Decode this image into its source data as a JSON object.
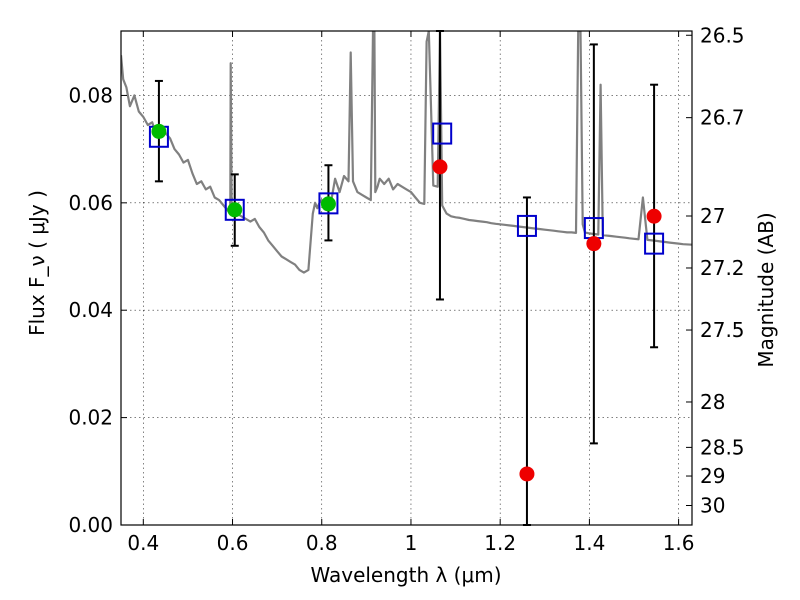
{
  "chart_data": {
    "type": "scatter",
    "xlabel": "Wavelength λ (μm)",
    "ylabel": "Flux F_ν ( μJy )",
    "ylabel_right": "Magnitude (AB)",
    "xlim": [
      0.35,
      1.63
    ],
    "ylim": [
      0.0,
      0.092
    ],
    "grid": true,
    "x_ticks": [
      0.4,
      0.6,
      0.8,
      1.0,
      1.2,
      1.4,
      1.6
    ],
    "x_tick_labels": [
      "0.4",
      "0.6",
      "0.8",
      "1",
      "1.2",
      "1.4",
      "1.6"
    ],
    "y_ticks": [
      0.0,
      0.02,
      0.04,
      0.06,
      0.08
    ],
    "y_tick_labels": [
      "0.00",
      "0.02",
      "0.04",
      "0.06",
      "0.08"
    ],
    "right_ticks": [
      {
        "label": "26.5",
        "value": 26.5
      },
      {
        "label": "26.7",
        "value": 26.7
      },
      {
        "label": "27",
        "value": 27.0
      },
      {
        "label": "27.2",
        "value": 27.2
      },
      {
        "label": "27.5",
        "value": 27.5
      },
      {
        "label": "28",
        "value": 28.0
      },
      {
        "label": "28.5",
        "value": 28.5
      },
      {
        "label": "29",
        "value": 29.0
      },
      {
        "label": "30",
        "value": 30.0
      }
    ],
    "series": [
      {
        "kind": "model_spectrum",
        "color": "#808080",
        "x": [
          0.35,
          0.355,
          0.362,
          0.37,
          0.38,
          0.39,
          0.4,
          0.41,
          0.42,
          0.43,
          0.44,
          0.45,
          0.46,
          0.47,
          0.48,
          0.49,
          0.5,
          0.51,
          0.52,
          0.53,
          0.54,
          0.55,
          0.56,
          0.57,
          0.58,
          0.59,
          0.595,
          0.596,
          0.598,
          0.6,
          0.61,
          0.62,
          0.63,
          0.64,
          0.65,
          0.66,
          0.67,
          0.68,
          0.69,
          0.7,
          0.71,
          0.72,
          0.73,
          0.74,
          0.75,
          0.76,
          0.77,
          0.78,
          0.785,
          0.79,
          0.795,
          0.8,
          0.81,
          0.82,
          0.83,
          0.84,
          0.85,
          0.86,
          0.865,
          0.87,
          0.875,
          0.88,
          0.89,
          0.9,
          0.91,
          0.915,
          0.918,
          0.92,
          0.925,
          0.93,
          0.94,
          0.95,
          0.96,
          0.97,
          0.98,
          0.99,
          1.0,
          1.01,
          1.02,
          1.03,
          1.035,
          1.04,
          1.05,
          1.06,
          1.065,
          1.07,
          1.08,
          1.09,
          1.1,
          1.11,
          1.12,
          1.13,
          1.14,
          1.15,
          1.16,
          1.17,
          1.18,
          1.19,
          1.2,
          1.21,
          1.22,
          1.23,
          1.24,
          1.25,
          1.26,
          1.27,
          1.28,
          1.29,
          1.3,
          1.31,
          1.32,
          1.33,
          1.34,
          1.35,
          1.36,
          1.37,
          1.375,
          1.38,
          1.385,
          1.39,
          1.4,
          1.41,
          1.42,
          1.425,
          1.43,
          1.44,
          1.45,
          1.46,
          1.47,
          1.48,
          1.49,
          1.5,
          1.51,
          1.52,
          1.53,
          1.54,
          1.55,
          1.56,
          1.57,
          1.58,
          1.59,
          1.6,
          1.61,
          1.63
        ],
        "y": [
          0.0875,
          0.083,
          0.0815,
          0.078,
          0.08,
          0.077,
          0.076,
          0.0745,
          0.075,
          0.0725,
          0.073,
          0.073,
          0.072,
          0.07,
          0.069,
          0.0675,
          0.068,
          0.0655,
          0.0635,
          0.064,
          0.0625,
          0.063,
          0.061,
          0.0605,
          0.0595,
          0.0585,
          0.059,
          0.086,
          0.06,
          0.0582,
          0.058,
          0.0575,
          0.057,
          0.0565,
          0.057,
          0.0555,
          0.0545,
          0.053,
          0.052,
          0.051,
          0.05,
          0.0495,
          0.049,
          0.0485,
          0.0475,
          0.047,
          0.0475,
          0.058,
          0.06,
          0.059,
          0.06,
          0.0605,
          0.0602,
          0.0598,
          0.0645,
          0.062,
          0.065,
          0.064,
          0.088,
          0.064,
          0.063,
          0.062,
          0.0615,
          0.061,
          0.0605,
          0.092,
          0.092,
          0.062,
          0.063,
          0.0645,
          0.0635,
          0.0645,
          0.0625,
          0.0635,
          0.063,
          0.0625,
          0.062,
          0.061,
          0.06,
          0.0598,
          0.09,
          0.092,
          0.0632,
          0.063,
          0.092,
          0.0595,
          0.058,
          0.0575,
          0.0573,
          0.0572,
          0.057,
          0.0568,
          0.0567,
          0.0566,
          0.0565,
          0.0564,
          0.0562,
          0.0561,
          0.056,
          0.0559,
          0.0558,
          0.0557,
          0.0556,
          0.0555,
          0.0554,
          0.0553,
          0.0552,
          0.0551,
          0.055,
          0.0549,
          0.0548,
          0.0547,
          0.0546,
          0.0545,
          0.0545,
          0.0544,
          0.092,
          0.092,
          0.056,
          0.0545,
          0.0543,
          0.0542,
          0.0541,
          0.082,
          0.054,
          0.0539,
          0.0538,
          0.0537,
          0.0536,
          0.0535,
          0.0534,
          0.0533,
          0.0532,
          0.061,
          0.0531,
          0.053,
          0.0529,
          0.0528,
          0.0527,
          0.0526,
          0.0525,
          0.0524,
          0.0523,
          0.0522
        ]
      },
      {
        "kind": "model_points",
        "marker": "open_square",
        "color": "#0000cc",
        "x": [
          0.435,
          0.605,
          0.815,
          1.07,
          1.26,
          1.41,
          1.545
        ],
        "y": [
          0.0723,
          0.0587,
          0.0599,
          0.0729,
          0.0557,
          0.0553,
          0.0524
        ]
      },
      {
        "kind": "observed_detection",
        "marker": "filled_circle",
        "color": "#00bb00",
        "x": [
          0.435,
          0.605,
          0.815
        ],
        "y": [
          0.0733,
          0.0587,
          0.0598
        ],
        "yerr_low": [
          0.064,
          0.052,
          0.053
        ],
        "yerr_high": [
          0.0827,
          0.0653,
          0.067
        ]
      },
      {
        "kind": "observed_other",
        "marker": "filled_circle",
        "color": "#ee0000",
        "x": [
          1.065,
          1.26,
          1.41,
          1.545
        ],
        "y": [
          0.0667,
          0.0095,
          0.0524,
          0.0575
        ],
        "yerr_low": [
          0.042,
          0.0,
          0.0152,
          0.0331
        ],
        "yerr_high": [
          0.092,
          0.061,
          0.0895,
          0.082
        ]
      }
    ]
  }
}
